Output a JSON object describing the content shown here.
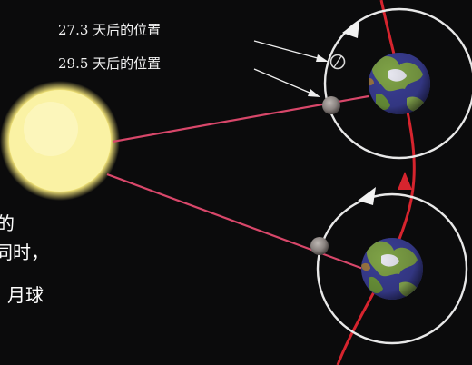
{
  "labels": {
    "sidereal": "27.3 天后的位置",
    "synodic": "29.5 天后的位置"
  },
  "side_text": {
    "line1": "的",
    "line2": "同时，",
    "line3": "月球"
  },
  "colors": {
    "background": "#0b0b0c",
    "sun": "#fbf3a0",
    "orbit_earth": "#d6242e",
    "sunline": "#d8476a",
    "orbit_moon": "#e8e8e8",
    "ocean": "#3b3f97",
    "land": "#7fa347"
  }
}
